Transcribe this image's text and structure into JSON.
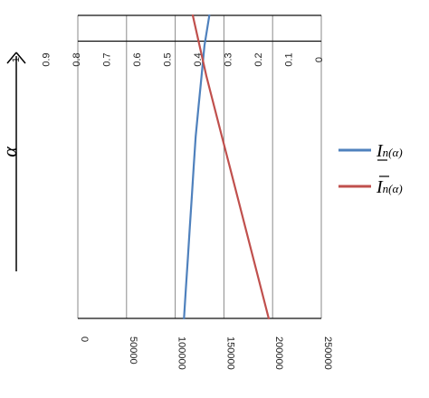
{
  "chart_data": {
    "type": "line",
    "orientation": "horizontal",
    "alpha_symbol": "α",
    "x_ticks": [
      0,
      50000,
      100000,
      150000,
      200000,
      250000
    ],
    "y_ticks": [
      0,
      0.1,
      0.2,
      0.3,
      0.4,
      0.5,
      0.6,
      0.7,
      0.8,
      0.9,
      1
    ],
    "x_range": [
      0,
      250000
    ],
    "y_range": [
      0,
      1
    ],
    "grid": "vertical",
    "reference_lines_y": [
      0,
      0.915,
      1
    ],
    "legend_position": "right",
    "series": [
      {
        "name": "I̲n(α)",
        "legend_main": "I",
        "legend_sub": "n(α)",
        "mark": "underline",
        "color": "#4f81bd",
        "points": [
          [
            109000,
            0
          ],
          [
            111000,
            0.1
          ],
          [
            113000,
            0.2
          ],
          [
            115000,
            0.3
          ],
          [
            117000,
            0.4
          ],
          [
            119000,
            0.5
          ],
          [
            121000,
            0.6
          ],
          [
            124000,
            0.7
          ],
          [
            127000,
            0.8
          ],
          [
            130000,
            0.9
          ],
          [
            135000,
            1.0
          ]
        ]
      },
      {
        "name": "Ī n(α)",
        "legend_main": "I",
        "legend_sub": "n(α)",
        "mark": "overline",
        "color": "#c0504d",
        "points": [
          [
            196000,
            0
          ],
          [
            188000,
            0.1
          ],
          [
            180000,
            0.2
          ],
          [
            172000,
            0.3
          ],
          [
            164000,
            0.4
          ],
          [
            156000,
            0.5
          ],
          [
            148000,
            0.6
          ],
          [
            140000,
            0.7
          ],
          [
            132000,
            0.8
          ],
          [
            125000,
            0.9
          ],
          [
            118000,
            1.0
          ]
        ]
      }
    ]
  }
}
